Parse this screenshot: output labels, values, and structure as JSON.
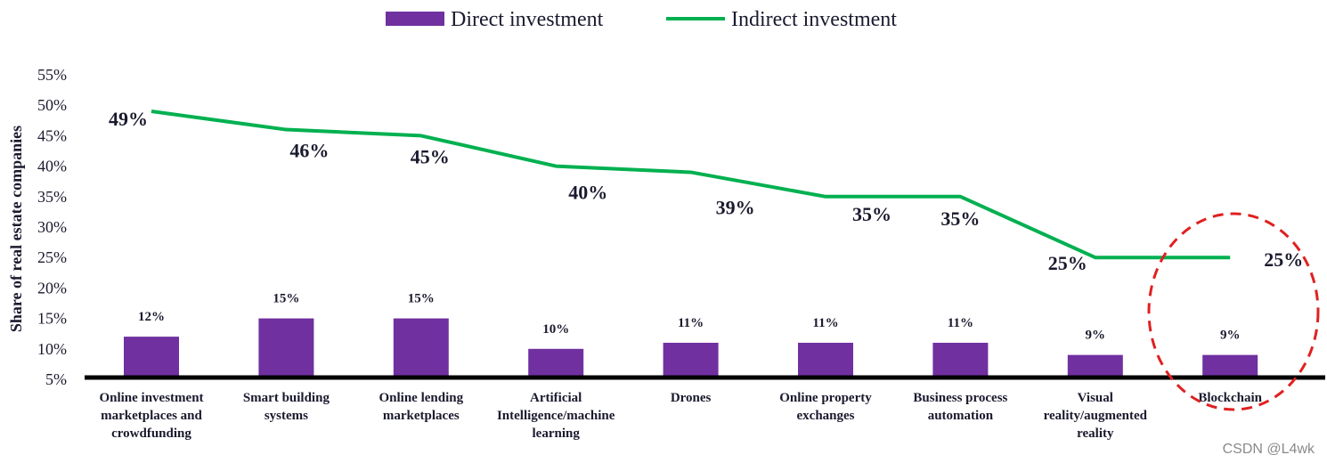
{
  "chart_data": {
    "type": "bar",
    "categories": [
      "Online investment marketplaces and crowdfunding",
      "Smart building systems",
      "Online lending marketplaces",
      "Artificial Intelligence/machine learning",
      "Drones",
      "Online property exchanges",
      "Business process automation",
      "Visual reality/augmented reality",
      "Blockchain"
    ],
    "category_lines": [
      [
        "Online investment",
        "marketplaces and",
        "crowdfunding"
      ],
      [
        "Smart building",
        "systems"
      ],
      [
        "Online lending",
        "marketplaces"
      ],
      [
        "Artificial",
        "Intelligence/machine",
        "learning"
      ],
      [
        "Drones"
      ],
      [
        "Online property",
        "exchanges"
      ],
      [
        "Business process",
        "automation"
      ],
      [
        "Visual",
        "reality/augmented",
        "reality"
      ],
      [
        "Blockchain"
      ]
    ],
    "series": [
      {
        "name": "Direct investment",
        "kind": "bar",
        "color": "#7030a0",
        "values": [
          12,
          15,
          15,
          10,
          11,
          11,
          11,
          9,
          9
        ],
        "labels": [
          "12%",
          "15%",
          "15%",
          "10%",
          "11%",
          "11%",
          "11%",
          "9%",
          "9%"
        ]
      },
      {
        "name": "Indirect investment",
        "kind": "line",
        "color": "#00b050",
        "values": [
          49,
          46,
          45,
          40,
          39,
          35,
          35,
          25,
          25
        ],
        "labels": [
          "49%",
          "46%",
          "45%",
          "40%",
          "39%",
          "35%",
          "35%",
          "25%",
          "25%"
        ]
      }
    ],
    "ylabel": "Share of real estate companies",
    "ylim": [
      5,
      55
    ],
    "yticks": [
      "5%",
      "10%",
      "15%",
      "20%",
      "25%",
      "30%",
      "35%",
      "40%",
      "45%",
      "50%",
      "55%"
    ],
    "grid": false,
    "legend": "top-center",
    "highlight": {
      "category": "Blockchain",
      "style": "dashed-ellipse",
      "color": "#e02020"
    }
  },
  "watermark": "CSDN @L4wk"
}
